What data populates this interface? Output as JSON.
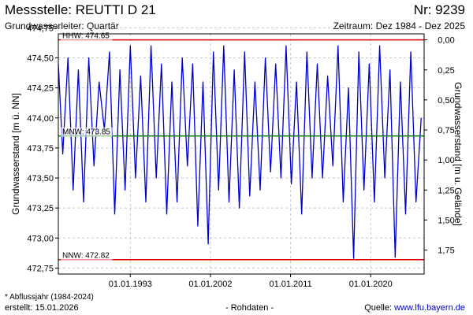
{
  "header": {
    "title": "Messstelle: REUTTI D 21",
    "number": "Nr: 9239",
    "aquifer": "Grundwasserleiter: Quartär",
    "period": "Zeitraum: Dez 1984 - Dez 2025"
  },
  "footer": {
    "note": "* Abflussjahr (1984-2024)",
    "created": "erstellt:  15.01.2026",
    "rawdata": "- Rohdaten -",
    "source_prefix": "Quelle: ",
    "source_link": "www.lfu.bayern.de"
  },
  "colors": {
    "series": "#0000cc",
    "hhw": "#e00000",
    "nnw": "#e00000",
    "mnw": "#007700",
    "grid": "#c8c8c8"
  },
  "chart_data": {
    "type": "line",
    "xlabel": "",
    "ylabel": "Grundwasserstand [m ü. NN]",
    "ylabel_right": "Grundwasserstand [m u. Gelände]",
    "xlim": [
      "1984-12-01",
      "2025-12-31"
    ],
    "ylim": [
      472.7,
      474.7
    ],
    "y_ticks": [
      472.75,
      473.0,
      473.25,
      473.5,
      473.75,
      474.0,
      474.25,
      474.5,
      474.75
    ],
    "y_tick_labels": [
      "472,75",
      "473,00",
      "473,25",
      "473,50",
      "473,75",
      "474,00",
      "474,25",
      "474,50",
      "474,75"
    ],
    "x_ticks": [
      "1993-01-01",
      "2002-01-01",
      "2011-01-01",
      "2020-01-01"
    ],
    "x_tick_labels": [
      "01.01.1993",
      "01.01.2002",
      "01.01.2011",
      "01.01.2020"
    ],
    "right_axis_reference": 474.65,
    "right_ticks": [
      0.0,
      0.25,
      0.5,
      0.75,
      1.0,
      1.25,
      1.5,
      1.75
    ],
    "right_tick_labels": [
      "0,00",
      "0,25",
      "0,50",
      "0,75",
      "1,00",
      "1,25",
      "1,50",
      "1,75"
    ],
    "grid": true,
    "reference_lines": [
      {
        "label": "HHW: 474.65",
        "value": 474.65,
        "color": "#e00000"
      },
      {
        "label": "MNW: 473.85",
        "value": 473.85,
        "color": "#007700"
      },
      {
        "label": "NNW: 472.82",
        "value": 472.82,
        "color": "#e00000"
      }
    ],
    "series": [
      {
        "x": [
          "1984-12-01",
          "1985-06-01",
          "1986-01-01",
          "1986-08-01",
          "1987-03-01",
          "1987-10-01",
          "1988-05-01",
          "1988-12-01",
          "1989-07-01",
          "1990-02-01",
          "1990-09-01",
          "1991-04-01",
          "1991-11-01",
          "1992-06-01",
          "1993-01-01",
          "1993-08-01",
          "1994-03-01",
          "1994-10-01",
          "1995-05-01",
          "1995-12-01",
          "1996-07-01",
          "1997-02-01",
          "1997-09-01",
          "1998-04-01",
          "1998-11-01",
          "1999-06-01",
          "2000-01-01",
          "2000-08-01",
          "2001-03-01",
          "2001-10-01",
          "2002-05-01",
          "2002-12-01",
          "2003-07-01",
          "2004-02-01",
          "2004-09-01",
          "2005-04-01",
          "2005-11-01",
          "2006-06-01",
          "2007-01-01",
          "2007-08-01",
          "2008-03-01",
          "2008-10-01",
          "2009-05-01",
          "2009-12-01",
          "2010-07-01",
          "2011-02-01",
          "2011-09-01",
          "2012-04-01",
          "2012-11-01",
          "2013-06-01",
          "2014-01-01",
          "2014-08-01",
          "2015-03-01",
          "2015-10-01",
          "2016-05-01",
          "2016-12-01",
          "2017-07-01",
          "2018-02-01",
          "2018-09-01",
          "2019-04-01",
          "2019-11-01",
          "2020-06-01",
          "2021-01-01",
          "2021-08-01",
          "2022-03-01",
          "2022-10-01",
          "2023-05-01",
          "2023-12-01",
          "2024-07-01",
          "2025-02-01",
          "2025-09-01"
        ],
        "values": [
          474.45,
          473.7,
          474.5,
          473.4,
          474.4,
          473.3,
          474.5,
          473.6,
          474.3,
          473.9,
          474.55,
          473.2,
          474.4,
          473.4,
          474.6,
          473.5,
          474.35,
          473.3,
          474.6,
          473.5,
          474.45,
          473.2,
          474.3,
          473.3,
          474.5,
          473.6,
          474.45,
          473.1,
          474.3,
          472.95,
          474.55,
          473.4,
          474.6,
          473.3,
          474.4,
          473.25,
          474.55,
          473.35,
          474.3,
          473.4,
          474.5,
          473.55,
          474.45,
          473.5,
          474.6,
          473.45,
          474.3,
          473.2,
          474.55,
          473.5,
          474.45,
          473.5,
          474.35,
          473.6,
          474.6,
          473.3,
          474.25,
          472.83,
          474.55,
          473.4,
          474.45,
          473.3,
          474.6,
          473.5,
          474.4,
          472.84,
          474.3,
          473.2,
          474.55,
          473.3,
          474.0
        ]
      }
    ]
  }
}
